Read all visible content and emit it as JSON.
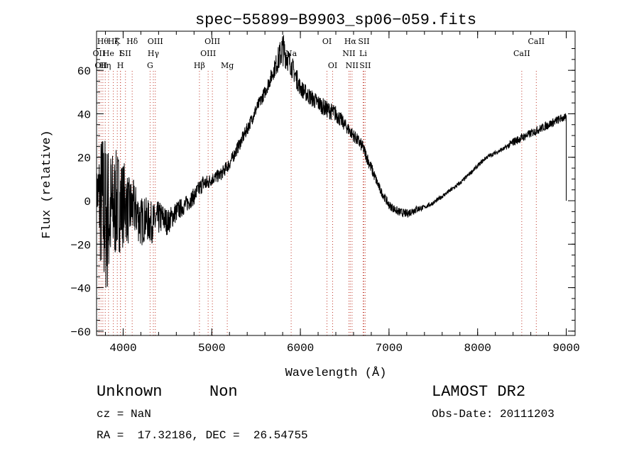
{
  "chart_data": {
    "type": "line",
    "title": "spec−55899−B9903_sp06−059.fits",
    "xlabel": "Wavelength (Å)",
    "ylabel": "Flux (relative)",
    "xlim": [
      3700,
      9100
    ],
    "ylim": [
      -62,
      78
    ],
    "x_ticks": [
      4000,
      5000,
      6000,
      7000,
      8000,
      9000
    ],
    "y_ticks": [
      -60,
      -40,
      -20,
      0,
      20,
      40,
      60
    ],
    "x_tick_labels": [
      "4000",
      "5000",
      "6000",
      "7000",
      "8000",
      "9000"
    ],
    "y_tick_labels": [
      "−60",
      "−40",
      "−20",
      "0",
      "20",
      "40",
      "60"
    ],
    "grid": false,
    "series": [
      {
        "color": "#000000",
        "x": [
          3700,
          3740,
          3780,
          3820,
          3860,
          3900,
          3940,
          3980,
          4020,
          4060,
          4100,
          4150,
          4200,
          4250,
          4300,
          4350,
          4400,
          4450,
          4500,
          4600,
          4700,
          4800,
          4850,
          4900,
          4950,
          5000,
          5100,
          5200,
          5300,
          5400,
          5500,
          5600,
          5700,
          5750,
          5800,
          5850,
          5900,
          5950,
          6000,
          6100,
          6200,
          6300,
          6400,
          6500,
          6600,
          6700,
          6800,
          6900,
          7000,
          7100,
          7200,
          7300,
          7400,
          7500,
          7600,
          7700,
          7800,
          7900,
          8000,
          8100,
          8200,
          8300,
          8400,
          8500,
          8600,
          8700,
          8800,
          8900,
          8950,
          9000
        ],
        "y": [
          5,
          0,
          -5,
          -8,
          -5,
          -3,
          0,
          -2,
          0,
          -5,
          -3,
          -5,
          -10,
          -8,
          -10,
          -10,
          -8,
          -8,
          -10,
          -5,
          -2,
          2,
          5,
          8,
          8,
          10,
          12,
          17,
          25,
          33,
          42,
          50,
          60,
          65,
          70,
          66,
          62,
          57,
          52,
          48,
          45,
          42,
          40,
          35,
          30,
          25,
          15,
          5,
          -2,
          -5,
          -6,
          -4,
          -3,
          -1,
          2,
          5,
          8,
          12,
          16,
          20,
          22,
          24,
          27,
          29,
          31,
          33,
          35,
          37,
          38,
          38
        ],
        "noise": [
          8,
          30,
          40,
          36,
          30,
          26,
          24,
          22,
          18,
          16,
          14,
          12,
          12,
          10,
          10,
          9,
          8,
          7,
          6,
          5,
          4,
          4,
          4,
          4,
          4,
          3,
          3,
          3,
          3,
          3,
          3,
          3,
          4,
          6,
          8,
          6,
          5,
          5,
          4,
          4,
          4,
          4,
          4,
          3,
          3,
          3,
          3,
          2,
          2,
          2,
          2,
          2,
          1,
          1,
          1,
          1,
          1,
          1,
          1,
          1,
          1,
          1,
          2,
          2,
          2,
          2,
          2,
          2,
          2,
          2
        ]
      }
    ],
    "line_markers": [
      {
        "x": 3727,
        "label": "OII",
        "row": 2
      },
      {
        "x": 3750,
        "label": "OII",
        "row": 3
      },
      {
        "x": 3771,
        "label": "Hθ",
        "row": 1
      },
      {
        "x": 3798,
        "label": "Hη",
        "row": 3
      },
      {
        "x": 3835,
        "label": "He",
        "row": 2
      },
      {
        "x": 3889,
        "label": "Hζ",
        "row": 0
      },
      {
        "x": 3934,
        "label": "K",
        "row": 1
      },
      {
        "x": 3969,
        "label": "H",
        "row": 3
      },
      {
        "x": 3970,
        "label": "I",
        "row": 2
      },
      {
        "x": 4026,
        "label": "SII",
        "row": 2
      },
      {
        "x": 4102,
        "label": "Hδ",
        "row": 1
      },
      {
        "x": 4304,
        "label": "G",
        "row": 3
      },
      {
        "x": 4341,
        "label": "Hγ",
        "row": 2
      },
      {
        "x": 4363,
        "label": "OIII",
        "row": 1
      },
      {
        "x": 4861,
        "label": "Hβ",
        "row": 3
      },
      {
        "x": 4959,
        "label": "OIII",
        "row": 2
      },
      {
        "x": 5007,
        "label": "OIII",
        "row": 1
      },
      {
        "x": 5175,
        "label": "Mg",
        "row": 3
      },
      {
        "x": 5896,
        "label": "Na",
        "row": 2
      },
      {
        "x": 6300,
        "label": "OI",
        "row": 1
      },
      {
        "x": 6364,
        "label": "OI",
        "row": 3
      },
      {
        "x": 6548,
        "label": "NII",
        "row": 2
      },
      {
        "x": 6563,
        "label": "Hα",
        "row": 1
      },
      {
        "x": 6583,
        "label": "NII",
        "row": 3
      },
      {
        "x": 6708,
        "label": "Li",
        "row": 2
      },
      {
        "x": 6716,
        "label": "SII",
        "row": 1
      },
      {
        "x": 6731,
        "label": "SII",
        "row": 3
      },
      {
        "x": 8498,
        "label": "CaII",
        "row": 2
      },
      {
        "x": 8662,
        "label": "CaII",
        "row": 1
      }
    ]
  },
  "info": {
    "class_label": "Unknown",
    "subclass_label": "Non",
    "survey": "LAMOST DR2",
    "redshift": "cz = NaN",
    "obs_date": "Obs-Date: 20111203",
    "coords": "RA =  17.32186, DEC =  26.54755"
  }
}
